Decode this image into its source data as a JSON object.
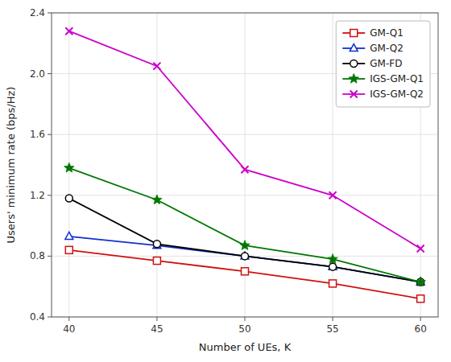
{
  "chart_data": {
    "type": "line",
    "xlabel": "Number of UEs, K",
    "ylabel": "Users' minimum rate (bps/Hz)",
    "x": [
      40,
      45,
      50,
      55,
      60
    ],
    "xlim": [
      39,
      61
    ],
    "xticks": [
      40,
      45,
      50,
      55,
      60
    ],
    "ylim": [
      0.4,
      2.4
    ],
    "yticks": [
      0.4,
      0.8,
      1.2,
      1.6,
      {
        "value": 2,
        "label": "2.0"
      },
      2.4
    ],
    "grid": true,
    "legend": "upper right",
    "series": [
      {
        "name": "GM-Q1",
        "color": "#d01010",
        "marker": "square",
        "values": [
          0.84,
          0.77,
          0.7,
          0.62,
          0.52
        ]
      },
      {
        "name": "GM-Q2",
        "color": "#1030d0",
        "marker": "triangle",
        "values": [
          0.93,
          0.87,
          0.8,
          0.73,
          0.63
        ]
      },
      {
        "name": "GM-FD",
        "color": "#000000",
        "marker": "circle",
        "values": [
          1.18,
          0.88,
          0.8,
          0.73,
          0.63
        ]
      },
      {
        "name": "IGS-GM-Q1",
        "color": "#007700",
        "marker": "star",
        "values": [
          1.38,
          1.17,
          0.87,
          0.78,
          0.63
        ]
      },
      {
        "name": "IGS-GM-Q2",
        "color": "#cc00cc",
        "marker": "x",
        "values": [
          2.28,
          2.05,
          1.37,
          1.2,
          0.85
        ]
      }
    ]
  }
}
